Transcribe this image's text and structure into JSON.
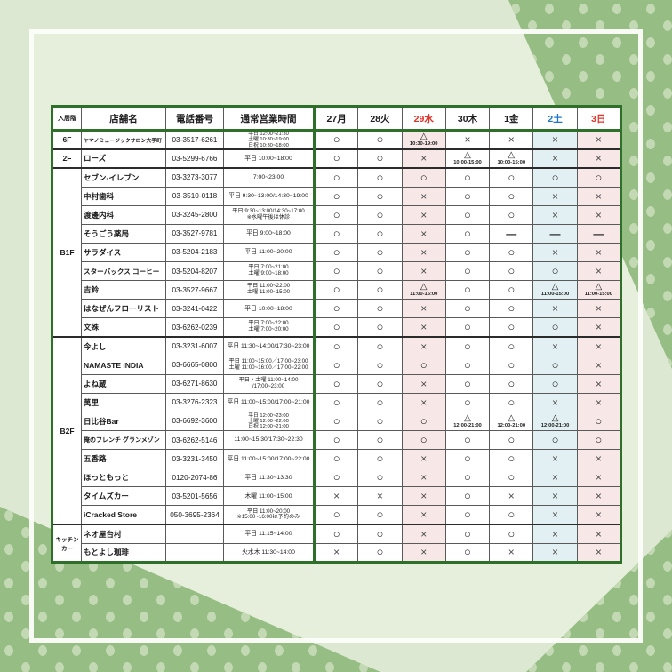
{
  "page": {
    "background": "#dde8d2",
    "inner_background": "#e6efdc",
    "frame_color": "#fcfefa",
    "dot_area_color": "#96bd84",
    "dot_color": "#c3d9b3",
    "table_border_color": "#2e6f2a"
  },
  "table": {
    "column_headers": [
      "入居階",
      "店舗名",
      "電話番号",
      "通常営業時間"
    ],
    "day_columns": [
      {
        "label": "27月",
        "text_color": "#1a1a1a",
        "tint": null
      },
      {
        "label": "28火",
        "text_color": "#1a1a1a",
        "tint": null
      },
      {
        "label": "29水",
        "text_color": "#e23127",
        "tint": "#f7e8e7"
      },
      {
        "label": "30木",
        "text_color": "#1a1a1a",
        "tint": null
      },
      {
        "label": "1金",
        "text_color": "#1a1a1a",
        "tint": null
      },
      {
        "label": "2土",
        "text_color": "#1d74cf",
        "tint": "#e2f0f4"
      },
      {
        "label": "3日",
        "text_color": "#e23127",
        "tint": "#f7e8e7"
      }
    ],
    "symbols": {
      "open": "○",
      "closed": "×",
      "partial": "△",
      "none": "—"
    },
    "rows": [
      {
        "floor": "6F",
        "floor_span": 1,
        "store": "ヤマノミュージックサロン大手町",
        "phone": "03-3517-6261",
        "hours": [
          "平日 12:00~21:30",
          "土曜 10:30~19:00",
          "日祝 10:30~18:00"
        ],
        "days": [
          "o",
          "o",
          "t|10:30-19:00",
          "x",
          "x",
          "x",
          "x"
        ]
      },
      {
        "floor": "2F",
        "floor_span": 1,
        "store": "ローズ",
        "phone": "03-5299-6766",
        "hours": [
          "平日 10:00~18:00"
        ],
        "days": [
          "o",
          "o",
          "x",
          "t|10:00-15:00",
          "t|10:00-15:00",
          "x",
          "x"
        ]
      },
      {
        "floor": "B1F",
        "floor_span": 9,
        "store": "セブン-イレブン",
        "phone": "03-3273-3077",
        "hours": [
          "7:00~23:00"
        ],
        "days": [
          "o",
          "o",
          "o",
          "o",
          "o",
          "o",
          "o"
        ]
      },
      {
        "store": "中村歯科",
        "phone": "03-3510-0118",
        "hours": [
          "平日 9:30~13:00/14:30~19:00"
        ],
        "days": [
          "o",
          "o",
          "x",
          "o",
          "o",
          "x",
          "x"
        ]
      },
      {
        "store": "渡邊内科",
        "phone": "03-3245-2800",
        "hours": [
          "平日 9:30~13:00/14:30~17:00",
          "※水曜午後は休診"
        ],
        "days": [
          "o",
          "o",
          "x",
          "o",
          "o",
          "x",
          "x"
        ]
      },
      {
        "store": "そうごう薬局",
        "phone": "03-3527-9781",
        "hours": [
          "平日 9:00~18:00"
        ],
        "days": [
          "o",
          "o",
          "x",
          "o",
          "-",
          "-",
          "-"
        ]
      },
      {
        "store": "サラダイス",
        "phone": "03-5204-2183",
        "hours": [
          "平日 11:00~20:00"
        ],
        "days": [
          "o",
          "o",
          "x",
          "o",
          "o",
          "x",
          "x"
        ]
      },
      {
        "store": "スターバックス コーヒー",
        "phone": "03-5204-8207",
        "hours": [
          "平日 7:00~21:00",
          "土曜 9:00~18:00"
        ],
        "days": [
          "o",
          "o",
          "x",
          "o",
          "o",
          "o",
          "x"
        ]
      },
      {
        "store": "吉鈴",
        "phone": "03-3527-9667",
        "hours": [
          "平日 11:00~22:00",
          "土曜 11:00~15:00"
        ],
        "days": [
          "o",
          "o",
          "t|11:00-15:00",
          "o",
          "o",
          "t|11:00-15:00",
          "t|11:00-15:00"
        ]
      },
      {
        "store": "はなぜんフローリスト",
        "phone": "03-3241-0422",
        "hours": [
          "平日 10:00~18:00"
        ],
        "days": [
          "o",
          "o",
          "x",
          "o",
          "o",
          "x",
          "x"
        ]
      },
      {
        "store": "文殊",
        "phone": "03-6262-0239",
        "hours": [
          "平日 7:00~22:00",
          "土曜 7:00~20:00"
        ],
        "days": [
          "o",
          "o",
          "x",
          "o",
          "o",
          "o",
          "x"
        ]
      },
      {
        "floor": "B2F",
        "floor_span": 10,
        "store": "今よし",
        "phone": "03-3231-6007",
        "hours": [
          "平日 11:30~14:00/17:30~23:00"
        ],
        "days": [
          "o",
          "o",
          "x",
          "o",
          "o",
          "x",
          "x"
        ]
      },
      {
        "store": "NAMASTE INDIA",
        "phone": "03-6665-0800",
        "hours": [
          "平日 11:00~15:00／17:00~23:00",
          "土曜 11:00~16:00／17:00~22:00"
        ],
        "days": [
          "o",
          "o",
          "o",
          "o",
          "o",
          "o",
          "x"
        ]
      },
      {
        "store": "よね蔵",
        "phone": "03-6271-8630",
        "hours": [
          "平日・土曜 11:00~14:00",
          "/17:00~23:00"
        ],
        "days": [
          "o",
          "o",
          "x",
          "o",
          "o",
          "o",
          "x"
        ]
      },
      {
        "store": "萬里",
        "phone": "03-3276-2323",
        "hours": [
          "平日 11:00~15:00/17:00~21:00"
        ],
        "days": [
          "o",
          "o",
          "x",
          "o",
          "o",
          "x",
          "x"
        ]
      },
      {
        "store": "日比谷Bar",
        "phone": "03-6692-3600",
        "hours": [
          "平日 12:00~23:00",
          "土曜 12:00~22:00",
          "日祝 12:00~21:00"
        ],
        "days": [
          "o",
          "o",
          "o",
          "t|12:00-21:00",
          "t|12:00-21:00",
          "t|12:00-21:00",
          "o"
        ]
      },
      {
        "store": "俺のフレンチ グランメゾン",
        "phone": "03-6262-5146",
        "hours": [
          "11:00~15:30/17:30~22:30"
        ],
        "days": [
          "o",
          "o",
          "o",
          "o",
          "o",
          "o",
          "o"
        ]
      },
      {
        "store": "五香路",
        "phone": "03-3231-3450",
        "hours": [
          "平日 11:00~15:00/17:00~22:00"
        ],
        "days": [
          "o",
          "o",
          "x",
          "o",
          "o",
          "x",
          "x"
        ]
      },
      {
        "store": "ほっともっと",
        "phone": "0120-2074-86",
        "hours": [
          "平日 11:30~13:30"
        ],
        "days": [
          "o",
          "o",
          "x",
          "o",
          "o",
          "x",
          "x"
        ]
      },
      {
        "store": "タイムズカー",
        "phone": "03-5201-5656",
        "hours": [
          "木曜 11:00~15:00"
        ],
        "days": [
          "x",
          "x",
          "x",
          "o",
          "x",
          "x",
          "x"
        ]
      },
      {
        "store": "iCracked Store",
        "phone": "050-3695-2364",
        "hours": [
          "平日 11:00~20:00",
          "※15:00~16:00は予約のみ"
        ],
        "days": [
          "o",
          "o",
          "x",
          "o",
          "o",
          "x",
          "x"
        ]
      },
      {
        "floor": "キッチンカー",
        "floor_lines": [
          "キッチン",
          "カー"
        ],
        "floor_span": 2,
        "store": "ネオ屋台村",
        "phone": "",
        "hours": [
          "平日 11:15~14:00"
        ],
        "days": [
          "o",
          "o",
          "x",
          "o",
          "o",
          "x",
          "x"
        ]
      },
      {
        "store": "もとよし珈琲",
        "phone": "",
        "hours": [
          "火水木 11:30~14:00"
        ],
        "days": [
          "x",
          "o",
          "x",
          "o",
          "x",
          "x",
          "x"
        ]
      }
    ]
  }
}
